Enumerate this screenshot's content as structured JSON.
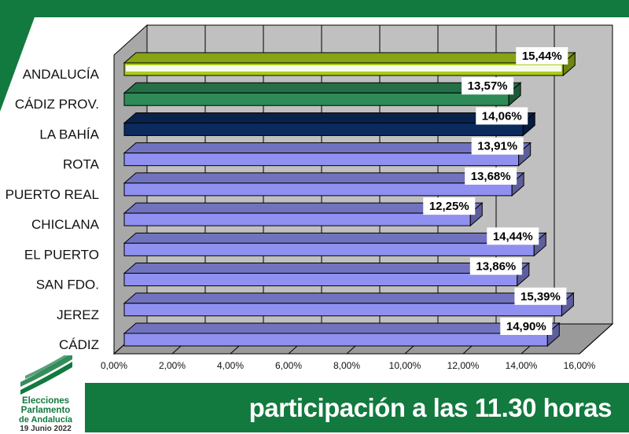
{
  "footer": {
    "title": "participación a las 11.30 horas",
    "logo_line1": "Elecciones",
    "logo_line2": "Parlamento",
    "logo_line3": "de Andalucía",
    "logo_date": "19 Junio 2022"
  },
  "colors": {
    "brand_green": "#12793f",
    "plot_wall": "#c0c0c0",
    "grid": "#000000"
  },
  "chart_data": {
    "type": "bar",
    "orientation": "horizontal",
    "style": "3d",
    "categories": [
      "ANDALUCÍA",
      "CÁDIZ PROV.",
      "LA BAHÍA",
      "ROTA",
      "PUERTO REAL",
      "CHICLANA",
      "EL PUERTO",
      "SAN FDO.",
      "JEREZ",
      "CÁDIZ"
    ],
    "values": [
      15.44,
      13.57,
      14.06,
      13.91,
      13.68,
      12.25,
      14.44,
      13.86,
      15.39,
      14.9
    ],
    "data_labels": [
      "15,44%",
      "13,57%",
      "14,06%",
      "13,91%",
      "13,68%",
      "12,25%",
      "14,44%",
      "13,86%",
      "15,39%",
      "14,90%"
    ],
    "bar_colors": [
      "#a9cc1c",
      "#2e8b57",
      "#0b2a5e",
      "#8f90ef",
      "#8f90ef",
      "#8f90ef",
      "#8f90ef",
      "#8f90ef",
      "#8f90ef",
      "#8f90ef"
    ],
    "xlim": [
      0,
      16
    ],
    "xticks": [
      0,
      2,
      4,
      6,
      8,
      10,
      12,
      14,
      16
    ],
    "xtick_labels": [
      "0,00%",
      "2,00%",
      "4,00%",
      "6,00%",
      "8,00%",
      "10,00%",
      "12,00%",
      "14,00%",
      "16,00%"
    ],
    "grid": true,
    "legend": "none"
  }
}
